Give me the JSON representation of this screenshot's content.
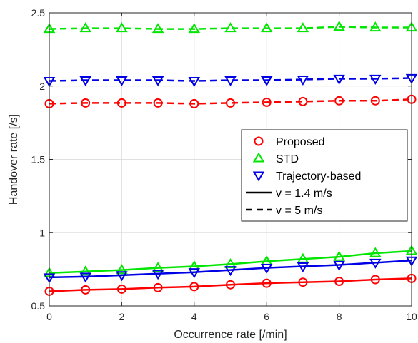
{
  "chart_data": {
    "type": "line",
    "title": "",
    "xlabel": "Occurrence rate [/min]",
    "ylabel": "Handover rate [/s]",
    "xlim": [
      0,
      10
    ],
    "ylim": [
      0.5,
      2.5
    ],
    "xticks": [
      0,
      2,
      4,
      6,
      8,
      10
    ],
    "yticks": [
      0.5,
      1,
      1.5,
      2,
      2.5
    ],
    "xtick_labels": [
      "0",
      "2",
      "4",
      "6",
      "8",
      "10"
    ],
    "ytick_labels": [
      "0.5",
      "1",
      "1.5",
      "2",
      "2.5"
    ],
    "grid": true,
    "legend_position": "right",
    "x": [
      0,
      1,
      2,
      3,
      4,
      5,
      6,
      7,
      8,
      9,
      10
    ],
    "series": [
      {
        "name": "Proposed",
        "speed": "v = 1.4 m/s",
        "color": "#ff0000",
        "marker": "circle",
        "dash": "solid",
        "values": [
          0.6,
          0.61,
          0.615,
          0.625,
          0.632,
          0.645,
          0.655,
          0.662,
          0.668,
          0.68,
          0.688
        ]
      },
      {
        "name": "STD",
        "speed": "v = 1.4 m/s",
        "color": "#00e600",
        "marker": "triangle-up",
        "dash": "solid",
        "values": [
          0.725,
          0.735,
          0.745,
          0.76,
          0.77,
          0.785,
          0.805,
          0.82,
          0.835,
          0.86,
          0.875
        ]
      },
      {
        "name": "Trajectory-based",
        "speed": "v = 1.4 m/s",
        "color": "#0000e6",
        "marker": "triangle-down",
        "dash": "solid",
        "values": [
          0.695,
          0.7,
          0.71,
          0.72,
          0.73,
          0.745,
          0.76,
          0.77,
          0.78,
          0.795,
          0.81
        ]
      },
      {
        "name": "Proposed",
        "speed": "v = 5 m/s",
        "color": "#ff0000",
        "marker": "circle",
        "dash": "dashed",
        "values": [
          1.88,
          1.885,
          1.885,
          1.885,
          1.88,
          1.885,
          1.89,
          1.895,
          1.9,
          1.9,
          1.91
        ]
      },
      {
        "name": "STD",
        "speed": "v = 5 m/s",
        "color": "#00e600",
        "marker": "triangle-up",
        "dash": "dashed",
        "values": [
          2.39,
          2.395,
          2.395,
          2.39,
          2.39,
          2.395,
          2.395,
          2.395,
          2.405,
          2.4,
          2.4
        ]
      },
      {
        "name": "Trajectory-based",
        "speed": "v = 5 m/s",
        "color": "#0000e6",
        "marker": "triangle-down",
        "dash": "dashed",
        "values": [
          2.035,
          2.04,
          2.04,
          2.04,
          2.035,
          2.04,
          2.04,
          2.045,
          2.05,
          2.05,
          2.055
        ]
      }
    ],
    "legend": [
      {
        "label": "Proposed",
        "kind": "marker",
        "marker": "circle",
        "color": "#ff0000"
      },
      {
        "label": "STD",
        "kind": "marker",
        "marker": "triangle-up",
        "color": "#00e600"
      },
      {
        "label": "Trajectory-based",
        "kind": "marker",
        "marker": "triangle-down",
        "color": "#0000e6"
      },
      {
        "label": "v = 1.4 m/s",
        "kind": "line",
        "dash": "solid",
        "color": "#000000"
      },
      {
        "label": "v = 5 m/s",
        "kind": "line",
        "dash": "dashed",
        "color": "#000000"
      }
    ]
  }
}
